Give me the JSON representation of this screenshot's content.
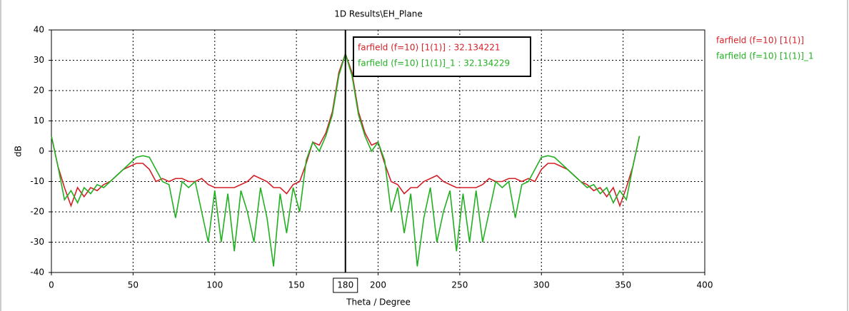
{
  "chart_data": {
    "type": "line",
    "title": "1D Results\\EH_Plane",
    "xlabel": "Theta / Degree",
    "ylabel": "dB",
    "xlim": [
      0,
      400
    ],
    "xticks": [
      0,
      50,
      100,
      150,
      200,
      250,
      300,
      350,
      400
    ],
    "ylim": [
      -40,
      40
    ],
    "yticks": [
      -40,
      -30,
      -20,
      -10,
      0,
      10,
      20,
      30,
      40
    ],
    "grid": true,
    "legend": "right",
    "marker_x": 180,
    "annotations": [
      "farfield (f=10) [1(1)] : 32.134221",
      "farfield (f=10) [1(1)]_1 : 32.134229"
    ],
    "x": [
      0,
      4,
      8,
      12,
      16,
      20,
      24,
      28,
      32,
      36,
      40,
      44,
      48,
      52,
      56,
      60,
      64,
      68,
      72,
      76,
      80,
      84,
      88,
      92,
      96,
      100,
      104,
      108,
      112,
      116,
      120,
      124,
      128,
      132,
      136,
      140,
      144,
      148,
      152,
      156,
      160,
      164,
      168,
      172,
      176,
      180,
      184,
      188,
      192,
      196,
      200,
      204,
      208,
      212,
      216,
      220,
      224,
      228,
      232,
      236,
      240,
      244,
      248,
      252,
      256,
      260,
      264,
      268,
      272,
      276,
      280,
      284,
      288,
      292,
      296,
      300,
      304,
      308,
      312,
      316,
      320,
      324,
      328,
      332,
      336,
      340,
      344,
      348,
      352,
      356,
      360
    ],
    "series": [
      {
        "name": "farfield (f=10) [1(1)]",
        "color": "#d42028",
        "values": [
          5,
          -5,
          -12,
          -18,
          -12,
          -15,
          -12,
          -13,
          -11,
          -10,
          -8,
          -6,
          -5,
          -4,
          -4,
          -6,
          -10,
          -9,
          -10,
          -9,
          -9,
          -10,
          -10,
          -9,
          -11,
          -12,
          -12,
          -12,
          -12,
          -11,
          -10,
          -8,
          -9,
          -10,
          -12,
          -12,
          -14,
          -11,
          -10,
          -4,
          3,
          2,
          6,
          13,
          26,
          32.134221,
          26,
          13,
          6,
          2,
          3,
          -4,
          -10,
          -11,
          -14,
          -12,
          -12,
          -10,
          -9,
          -8,
          -10,
          -11,
          -12,
          -12,
          -12,
          -12,
          -11,
          -9,
          -10,
          -10,
          -9,
          -9,
          -10,
          -9,
          -10,
          -6,
          -4,
          -4,
          -5,
          -6,
          -8,
          -10,
          -11,
          -13,
          -12,
          -15,
          -12,
          -18,
          -12,
          -5,
          5
        ]
      },
      {
        "name": "farfield (f=10) [1(1)]_1",
        "color": "#22b022",
        "values": [
          5,
          -5,
          -16,
          -13,
          -17,
          -12,
          -14,
          -11,
          -12,
          -10,
          -8,
          -6,
          -4,
          -2,
          -1.5,
          -2,
          -6,
          -10,
          -11,
          -22,
          -10,
          -12,
          -10,
          -20,
          -30,
          -13,
          -30,
          -14,
          -33,
          -13,
          -20,
          -30,
          -12,
          -22,
          -38,
          -14,
          -27,
          -12,
          -20,
          -3,
          3,
          0,
          5,
          12,
          25,
          32.134229,
          25,
          12,
          5,
          0,
          3,
          -3,
          -20,
          -12,
          -27,
          -14,
          -38,
          -22,
          -12,
          -30,
          -20,
          -13,
          -33,
          -14,
          -30,
          -13,
          -30,
          -20,
          -10,
          -12,
          -10,
          -22,
          -11,
          -10,
          -6,
          -2,
          -1.5,
          -2,
          -4,
          -6,
          -8,
          -10,
          -12,
          -11,
          -14,
          -12,
          -17,
          -13,
          -16,
          -5,
          5
        ]
      }
    ]
  }
}
